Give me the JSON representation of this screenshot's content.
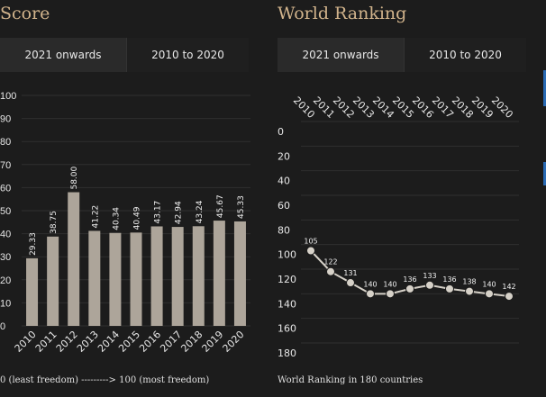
{
  "score_panel": {
    "title": "Score",
    "tabs": [
      "2021 onwards",
      "2010 to 2020"
    ],
    "active_tab": 1,
    "footnote": "0 (least freedom) ---------> 100 (most freedom)"
  },
  "ranking_panel": {
    "title": "World Ranking",
    "tabs": [
      "2021 onwards",
      "2010 to 2020"
    ],
    "active_tab": 1,
    "footnote": "World Ranking in 180 countries"
  },
  "chart_data": [
    {
      "type": "bar",
      "title": "Score",
      "categories": [
        "2010",
        "2011",
        "2012",
        "2013",
        "2014",
        "2015",
        "2016",
        "2017",
        "2018",
        "2019",
        "2020"
      ],
      "values": [
        29.33,
        38.75,
        58.0,
        41.22,
        40.34,
        40.49,
        43.17,
        42.94,
        43.24,
        45.67,
        45.33
      ],
      "value_labels": [
        "29.33",
        "38.75",
        "58.00",
        "41.22",
        "40.34",
        "40.49",
        "43.17",
        "42.94",
        "43.24",
        "45.67",
        "45.33"
      ],
      "yticks": [
        "0",
        "10",
        "20",
        "30",
        "40",
        "50",
        "60",
        "70",
        "80",
        "90",
        "100"
      ],
      "ylim": [
        0,
        100
      ],
      "color": "#ada59a"
    },
    {
      "type": "line",
      "title": "World Ranking",
      "categories": [
        "2010",
        "2011",
        "2012",
        "2013",
        "2014",
        "2015",
        "2016",
        "2017",
        "2018",
        "2019",
        "2020"
      ],
      "values": [
        105,
        122,
        131,
        140,
        140,
        136,
        133,
        136,
        138,
        140,
        142
      ],
      "value_labels": [
        "105",
        "122",
        "131",
        "140",
        "140",
        "136",
        "133",
        "136",
        "138",
        "140",
        "142"
      ],
      "yticks": [
        "0",
        "20",
        "40",
        "60",
        "80",
        "100",
        "120",
        "140",
        "160",
        "180"
      ],
      "ylim": [
        0,
        180
      ],
      "inverted": true,
      "color": "#d6d1c8"
    }
  ]
}
